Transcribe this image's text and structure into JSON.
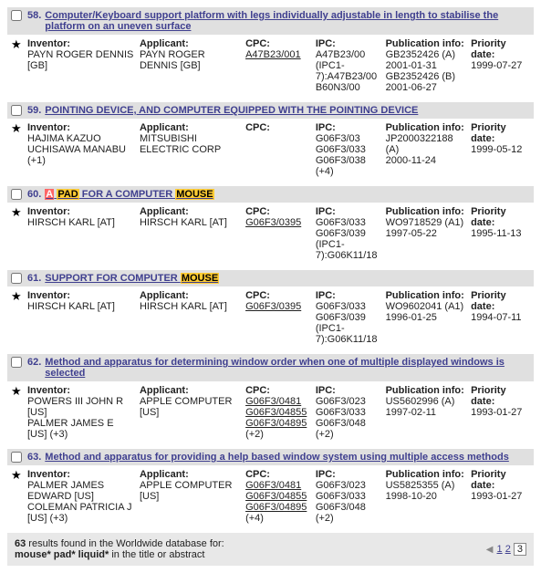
{
  "labels": {
    "inventor": "Inventor:",
    "applicant": "Applicant:",
    "cpc": "CPC:",
    "ipc": "IPC:",
    "pub": "Publication info:",
    "pri": "Priority date:"
  },
  "results": [
    {
      "num": "58.",
      "title_html": "Computer/Keyboard support platform with legs individually adjustable in length to stabilise the platform on an uneven surface",
      "inventor": "PAYN ROGER DENNIS [GB]",
      "applicant": "PAYN ROGER DENNIS [GB]",
      "cpc": [
        {
          "t": "A47B23/001",
          "u": true
        }
      ],
      "ipc": [
        "A47B23/00",
        "(IPC1-7):A47B23/00",
        "B60N3/00"
      ],
      "pub": [
        "GB2352426 (A)",
        "2001-01-31",
        "GB2352426 (B)",
        "2001-06-27"
      ],
      "pri": "1999-07-27"
    },
    {
      "num": "59.",
      "title_html": "POINTING DEVICE, AND COMPUTER EQUIPPED WITH THE POINTING DEVICE",
      "inventor": "HAJIMA KAZUO\nUCHISAWA MANABU (+1)",
      "applicant": "MITSUBISHI ELECTRIC CORP",
      "cpc": [],
      "ipc": [
        "G06F3/03",
        "G06F3/033",
        "G06F3/038",
        "(+4)"
      ],
      "pub": [
        "JP2000322188 (A)",
        "2000-11-24"
      ],
      "pri": "1999-05-12"
    },
    {
      "num": "60.",
      "title_html": "<span class='hl-red'>A</span> <span class='hl'>PAD</span> FOR A COMPUTER <span class='hl'>MOUSE</span>",
      "inventor": "HIRSCH KARL [AT]",
      "applicant": "HIRSCH KARL [AT]",
      "cpc": [
        {
          "t": "G06F3/0395",
          "u": true
        }
      ],
      "ipc": [
        "G06F3/033",
        "G06F3/039",
        "(IPC1-7):G06K11/18"
      ],
      "pub": [
        "WO9718529 (A1)",
        "1997-05-22"
      ],
      "pri": "1995-11-13"
    },
    {
      "num": "61.",
      "title_html": "SUPPORT FOR COMPUTER <span class='hl'>MOUSE</span>",
      "inventor": "HIRSCH KARL [AT]",
      "applicant": "HIRSCH KARL [AT]",
      "cpc": [
        {
          "t": "G06F3/0395",
          "u": true
        }
      ],
      "ipc": [
        "G06F3/033",
        "G06F3/039",
        "(IPC1-7):G06K11/18"
      ],
      "pub": [
        "WO9602041 (A1)",
        "1996-01-25"
      ],
      "pri": "1994-07-11"
    },
    {
      "num": "62.",
      "title_html": "Method and apparatus for determining window order when one of multiple displayed windows is selected",
      "inventor": "POWERS III JOHN R [US]\nPALMER JAMES E [US] (+3)",
      "applicant": "APPLE COMPUTER [US]",
      "cpc": [
        {
          "t": "G06F3/0481",
          "u": true
        },
        {
          "t": "G06F3/04855",
          "u": true
        },
        {
          "t": "G06F3/04895",
          "u": true
        },
        {
          "t": "(+2)",
          "u": false
        }
      ],
      "ipc": [
        "G06F3/023",
        "G06F3/033",
        "G06F3/048",
        "(+2)"
      ],
      "pub": [
        "US5602996 (A)",
        "1997-02-11"
      ],
      "pri": "1993-01-27"
    },
    {
      "num": "63.",
      "title_html": "Method and apparatus for providing a help based window system using multiple access methods",
      "inventor": "PALMER JAMES EDWARD [US]\nCOLEMAN PATRICIA J [US] (+3)",
      "applicant": "APPLE COMPUTER [US]",
      "cpc": [
        {
          "t": "G06F3/0481",
          "u": true
        },
        {
          "t": "G06F3/04855",
          "u": true
        },
        {
          "t": "G06F3/04895",
          "u": true
        },
        {
          "t": "(+4)",
          "u": false
        }
      ],
      "ipc": [
        "G06F3/023",
        "G06F3/033",
        "G06F3/048",
        "(+2)"
      ],
      "pub": [
        "US5825355 (A)",
        "1998-10-20"
      ],
      "pri": "1993-01-27"
    }
  ],
  "footer": {
    "line1_a": "63",
    "line1_b": " results found in the Worldwide database for:",
    "line2_a": "mouse* pad* liquid*",
    "line2_b": " in the title or abstract",
    "pages": [
      "1",
      "2",
      "3"
    ],
    "current": "3"
  }
}
